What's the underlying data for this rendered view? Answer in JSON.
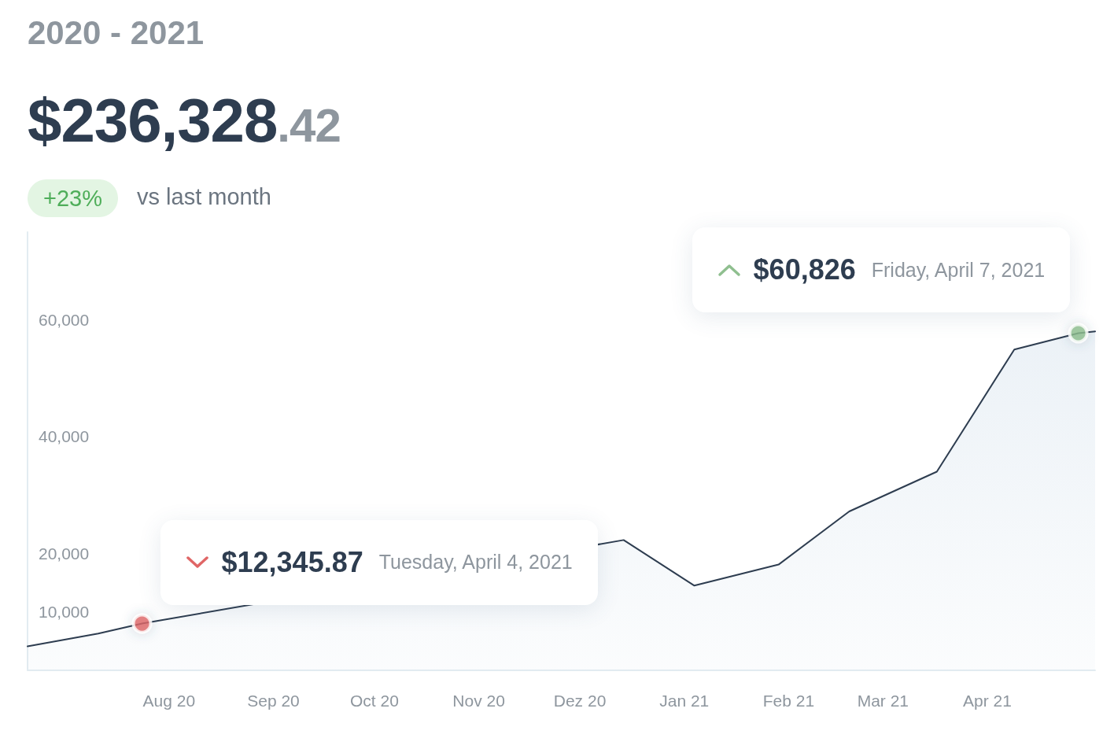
{
  "chart_data": {
    "type": "area",
    "title": "2020 - 2021",
    "subtitle": "$236,328.42",
    "annotations": [
      "+23%",
      "vs last month",
      "$12,345.87",
      "Tuesday, April 4, 2021",
      "$60,826",
      "Friday, April 7, 2021"
    ],
    "series": [
      {
        "color": "#2e3d50",
        "marker": "none",
        "x": [
          "2020-06-20",
          "2020-07-11",
          "2020-07-24",
          "2020-12-14",
          "2021-01-04",
          "2021-01-29",
          "2021-02-19",
          "2021-03-17",
          "2021-04-09",
          "2021-04-28",
          "2021-05-03"
        ],
        "values": [
          4100,
          6300,
          8000,
          22300,
          14500,
          18100,
          27200,
          34000,
          54900,
          57700,
          58000
        ]
      },
      {
        "type": "scatter",
        "color": "#e06666",
        "x": [
          "2020-07-24"
        ],
        "values": [
          8000
        ]
      },
      {
        "type": "scatter",
        "color": "#8fbf8f",
        "x": [
          "2021-04-28"
        ],
        "values": [
          57700
        ]
      }
    ],
    "xlim": [
      "2020-06-20",
      "2021-05-03"
    ],
    "xticks": [
      {
        "value": "2020-08-01",
        "label": "Aug 20"
      },
      {
        "value": "2020-09-01",
        "label": "Sep 20"
      },
      {
        "value": "2020-10-01",
        "label": "Oct 20"
      },
      {
        "value": "2020-11-01",
        "label": "Nov 20"
      },
      {
        "value": "2020-12-01",
        "label": "Dez 20"
      },
      {
        "value": "2021-01-01",
        "label": "Jan 21"
      },
      {
        "value": "2021-02-01",
        "label": "Feb 21"
      },
      {
        "value": "2021-03-01",
        "label": "Mar 21"
      },
      {
        "value": "2021-04-01",
        "label": "Apr 21"
      }
    ],
    "ylim": [
      0,
      75000
    ],
    "yticks": [
      {
        "value": 10000,
        "label": "10,000"
      },
      {
        "value": 20000,
        "label": "20,000"
      },
      {
        "value": 40000,
        "label": "40,000"
      },
      {
        "value": 60000,
        "label": "60,000"
      }
    ],
    "grid": false,
    "marker": "circle",
    "line_style": "solid"
  }
}
